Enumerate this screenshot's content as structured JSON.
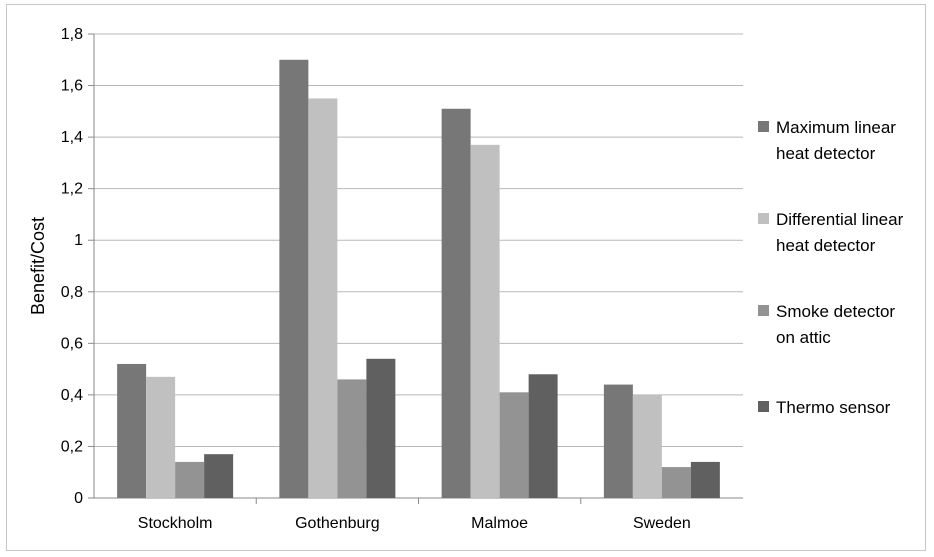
{
  "chart_data": {
    "type": "bar",
    "title": "",
    "xlabel": "",
    "ylabel": "Benefit/Cost",
    "ylim": [
      0,
      1.8
    ],
    "yticks": [
      "0",
      "0,2",
      "0,4",
      "0,6",
      "0,8",
      "1",
      "1,2",
      "1,4",
      "1,6",
      "1,8"
    ],
    "grid": true,
    "legend_position": "right",
    "categories": [
      "Stockholm",
      "Gothenburg",
      "Malmoe",
      "Sweden"
    ],
    "series": [
      {
        "name": "Maximum linear heat detector",
        "legend_lines": [
          "Maximum linear",
          "heat detector"
        ],
        "color": "#777777",
        "values": [
          0.52,
          1.7,
          1.51,
          0.44
        ]
      },
      {
        "name": "Differential linear heat detector",
        "legend_lines": [
          "Differential linear",
          "heat detector"
        ],
        "color": "#c0c0c0",
        "values": [
          0.47,
          1.55,
          1.37,
          0.4
        ]
      },
      {
        "name": "Smoke detector on attic",
        "legend_lines": [
          "Smoke detector",
          "on attic"
        ],
        "color": "#939393",
        "values": [
          0.14,
          0.46,
          0.41,
          0.12
        ]
      },
      {
        "name": "Thermo sensor",
        "legend_lines": [
          "Thermo sensor"
        ],
        "color": "#606060",
        "values": [
          0.17,
          0.54,
          0.48,
          0.14
        ]
      }
    ]
  }
}
